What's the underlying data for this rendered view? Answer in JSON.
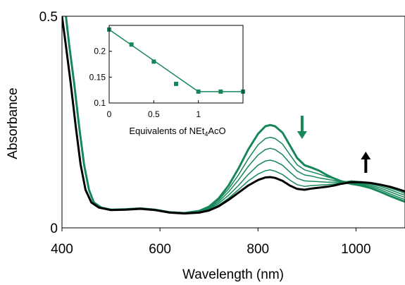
{
  "colors": {
    "green": "#17875a",
    "black": "#000000",
    "axis": "#000000"
  },
  "chart_data": [
    {
      "type": "line",
      "title": "",
      "xlabel": "Wavelength (nm)",
      "ylabel": "Absorbance",
      "xlim": [
        400,
        1100
      ],
      "ylim": [
        0,
        0.5
      ],
      "xticks": [
        400,
        600,
        800,
        1000
      ],
      "xtick_labels": [
        "400",
        "600",
        "800",
        "1000"
      ],
      "yticks": [
        0,
        0.5
      ],
      "ytick_labels": [
        "0",
        "0.5"
      ],
      "grid": false,
      "legend": "none",
      "annotations": [
        {
          "kind": "arrow",
          "direction": "down",
          "x": 890,
          "y_from": 0.265,
          "y_to": 0.21,
          "color": "green"
        },
        {
          "kind": "arrow",
          "direction": "up",
          "x": 1020,
          "y_from": 0.13,
          "y_to": 0.18,
          "color": "black"
        }
      ],
      "series": [
        {
          "color": "green",
          "width": 3.0,
          "points": [
            [
              408,
              0.5
            ],
            [
              415,
              0.43
            ],
            [
              425,
              0.34
            ],
            [
              435,
              0.24
            ],
            [
              445,
              0.15
            ],
            [
              455,
              0.09
            ],
            [
              465,
              0.06
            ],
            [
              480,
              0.048
            ],
            [
              500,
              0.043
            ],
            [
              530,
              0.044
            ],
            [
              560,
              0.046
            ],
            [
              590,
              0.043
            ],
            [
              620,
              0.037
            ],
            [
              650,
              0.035
            ],
            [
              680,
              0.04
            ],
            [
              700,
              0.05
            ],
            [
              720,
              0.07
            ],
            [
              740,
              0.1
            ],
            [
              760,
              0.14
            ],
            [
              780,
              0.185
            ],
            [
              800,
              0.222
            ],
            [
              815,
              0.24
            ],
            [
              825,
              0.243
            ],
            [
              835,
              0.24
            ],
            [
              850,
              0.225
            ],
            [
              865,
              0.195
            ],
            [
              880,
              0.165
            ],
            [
              895,
              0.148
            ],
            [
              910,
              0.142
            ],
            [
              925,
              0.135
            ],
            [
              940,
              0.125
            ],
            [
              955,
              0.117
            ],
            [
              970,
              0.11
            ],
            [
              990,
              0.104
            ],
            [
              1010,
              0.1
            ],
            [
              1030,
              0.094
            ],
            [
              1050,
              0.085
            ],
            [
              1070,
              0.075
            ],
            [
              1090,
              0.066
            ],
            [
              1100,
              0.062
            ]
          ]
        },
        {
          "color": "green",
          "width": 1.5,
          "points": [
            [
              408,
              0.5
            ],
            [
              415,
              0.43
            ],
            [
              425,
              0.34
            ],
            [
              435,
              0.24
            ],
            [
              445,
              0.15
            ],
            [
              455,
              0.09
            ],
            [
              465,
              0.06
            ],
            [
              480,
              0.048
            ],
            [
              500,
              0.043
            ],
            [
              530,
              0.044
            ],
            [
              560,
              0.046
            ],
            [
              590,
              0.043
            ],
            [
              620,
              0.037
            ],
            [
              650,
              0.035
            ],
            [
              680,
              0.039
            ],
            [
              700,
              0.048
            ],
            [
              720,
              0.066
            ],
            [
              740,
              0.092
            ],
            [
              760,
              0.125
            ],
            [
              780,
              0.163
            ],
            [
              800,
              0.196
            ],
            [
              815,
              0.211
            ],
            [
              825,
              0.214
            ],
            [
              835,
              0.211
            ],
            [
              850,
              0.198
            ],
            [
              865,
              0.173
            ],
            [
              880,
              0.149
            ],
            [
              895,
              0.137
            ],
            [
              910,
              0.132
            ],
            [
              925,
              0.127
            ],
            [
              940,
              0.121
            ],
            [
              955,
              0.116
            ],
            [
              970,
              0.111
            ],
            [
              990,
              0.107
            ],
            [
              1010,
              0.103
            ],
            [
              1030,
              0.098
            ],
            [
              1050,
              0.09
            ],
            [
              1070,
              0.08
            ],
            [
              1090,
              0.071
            ],
            [
              1100,
              0.067
            ]
          ]
        },
        {
          "color": "green",
          "width": 1.5,
          "points": [
            [
              408,
              0.5
            ],
            [
              415,
              0.43
            ],
            [
              425,
              0.34
            ],
            [
              435,
              0.24
            ],
            [
              445,
              0.15
            ],
            [
              455,
              0.09
            ],
            [
              465,
              0.06
            ],
            [
              480,
              0.048
            ],
            [
              500,
              0.043
            ],
            [
              530,
              0.044
            ],
            [
              560,
              0.046
            ],
            [
              590,
              0.043
            ],
            [
              620,
              0.037
            ],
            [
              650,
              0.035
            ],
            [
              680,
              0.038
            ],
            [
              700,
              0.046
            ],
            [
              720,
              0.062
            ],
            [
              740,
              0.085
            ],
            [
              760,
              0.113
            ],
            [
              780,
              0.145
            ],
            [
              800,
              0.172
            ],
            [
              815,
              0.185
            ],
            [
              825,
              0.188
            ],
            [
              835,
              0.185
            ],
            [
              850,
              0.173
            ],
            [
              865,
              0.153
            ],
            [
              880,
              0.134
            ],
            [
              895,
              0.125
            ],
            [
              910,
              0.122
            ],
            [
              925,
              0.118
            ],
            [
              940,
              0.115
            ],
            [
              955,
              0.112
            ],
            [
              970,
              0.11
            ],
            [
              990,
              0.108
            ],
            [
              1010,
              0.105
            ],
            [
              1030,
              0.101
            ],
            [
              1050,
              0.094
            ],
            [
              1070,
              0.085
            ],
            [
              1090,
              0.076
            ],
            [
              1100,
              0.072
            ]
          ]
        },
        {
          "color": "green",
          "width": 1.5,
          "points": [
            [
              408,
              0.5
            ],
            [
              415,
              0.43
            ],
            [
              425,
              0.34
            ],
            [
              435,
              0.24
            ],
            [
              445,
              0.15
            ],
            [
              455,
              0.09
            ],
            [
              465,
              0.06
            ],
            [
              480,
              0.048
            ],
            [
              500,
              0.043
            ],
            [
              530,
              0.044
            ],
            [
              560,
              0.046
            ],
            [
              590,
              0.043
            ],
            [
              620,
              0.037
            ],
            [
              650,
              0.035
            ],
            [
              680,
              0.037
            ],
            [
              700,
              0.044
            ],
            [
              720,
              0.058
            ],
            [
              740,
              0.077
            ],
            [
              760,
              0.1
            ],
            [
              780,
              0.126
            ],
            [
              800,
              0.148
            ],
            [
              815,
              0.158
            ],
            [
              825,
              0.16
            ],
            [
              835,
              0.157
            ],
            [
              850,
              0.148
            ],
            [
              865,
              0.132
            ],
            [
              880,
              0.117
            ],
            [
              895,
              0.111
            ],
            [
              910,
              0.11
            ],
            [
              925,
              0.109
            ],
            [
              940,
              0.108
            ],
            [
              955,
              0.108
            ],
            [
              970,
              0.109
            ],
            [
              990,
              0.11
            ],
            [
              1010,
              0.107
            ],
            [
              1030,
              0.104
            ],
            [
              1050,
              0.098
            ],
            [
              1070,
              0.09
            ],
            [
              1090,
              0.081
            ],
            [
              1100,
              0.077
            ]
          ]
        },
        {
          "color": "green",
          "width": 1.5,
          "points": [
            [
              408,
              0.5
            ],
            [
              415,
              0.43
            ],
            [
              425,
              0.34
            ],
            [
              435,
              0.24
            ],
            [
              445,
              0.15
            ],
            [
              455,
              0.09
            ],
            [
              465,
              0.06
            ],
            [
              480,
              0.048
            ],
            [
              500,
              0.043
            ],
            [
              530,
              0.044
            ],
            [
              560,
              0.046
            ],
            [
              590,
              0.043
            ],
            [
              620,
              0.037
            ],
            [
              650,
              0.035
            ],
            [
              680,
              0.036
            ],
            [
              700,
              0.042
            ],
            [
              720,
              0.054
            ],
            [
              740,
              0.07
            ],
            [
              760,
              0.09
            ],
            [
              780,
              0.111
            ],
            [
              800,
              0.127
            ],
            [
              815,
              0.135
            ],
            [
              825,
              0.137
            ],
            [
              835,
              0.134
            ],
            [
              850,
              0.126
            ],
            [
              865,
              0.113
            ],
            [
              880,
              0.102
            ],
            [
              895,
              0.098
            ],
            [
              910,
              0.1
            ],
            [
              925,
              0.101
            ],
            [
              940,
              0.102
            ],
            [
              955,
              0.104
            ],
            [
              970,
              0.107
            ],
            [
              990,
              0.111
            ],
            [
              1010,
              0.109
            ],
            [
              1030,
              0.106
            ],
            [
              1050,
              0.101
            ],
            [
              1070,
              0.094
            ],
            [
              1090,
              0.086
            ],
            [
              1100,
              0.081
            ]
          ]
        },
        {
          "color": "black",
          "width": 3.0,
          "points": [
            [
              400,
              0.5
            ],
            [
              408,
              0.43
            ],
            [
              418,
              0.34
            ],
            [
              428,
              0.24
            ],
            [
              438,
              0.15
            ],
            [
              448,
              0.09
            ],
            [
              460,
              0.06
            ],
            [
              475,
              0.048
            ],
            [
              500,
              0.042
            ],
            [
              530,
              0.043
            ],
            [
              560,
              0.045
            ],
            [
              590,
              0.042
            ],
            [
              620,
              0.036
            ],
            [
              650,
              0.034
            ],
            [
              680,
              0.036
            ],
            [
              700,
              0.041
            ],
            [
              720,
              0.051
            ],
            [
              740,
              0.066
            ],
            [
              760,
              0.083
            ],
            [
              780,
              0.1
            ],
            [
              800,
              0.113
            ],
            [
              815,
              0.119
            ],
            [
              825,
              0.12
            ],
            [
              835,
              0.118
            ],
            [
              850,
              0.111
            ],
            [
              865,
              0.1
            ],
            [
              880,
              0.092
            ],
            [
              895,
              0.09
            ],
            [
              910,
              0.093
            ],
            [
              925,
              0.095
            ],
            [
              940,
              0.097
            ],
            [
              955,
              0.1
            ],
            [
              970,
              0.104
            ],
            [
              990,
              0.108
            ],
            [
              1010,
              0.108
            ],
            [
              1030,
              0.106
            ],
            [
              1050,
              0.102
            ],
            [
              1070,
              0.097
            ],
            [
              1090,
              0.09
            ],
            [
              1100,
              0.086
            ]
          ]
        }
      ]
    },
    {
      "type": "scatter",
      "title": "",
      "xlabel": "Equivalents of NEt",
      "xlabel_sub": "4",
      "xlabel_suffix": "AcO",
      "ylabel": "",
      "xlim": [
        0,
        1.5
      ],
      "ylim": [
        0.1,
        0.25
      ],
      "xticks": [
        0,
        0.5,
        1
      ],
      "xtick_labels": [
        "0",
        "0.5",
        "1"
      ],
      "yticks": [
        0.1,
        0.15,
        0.2
      ],
      "ytick_labels": [
        "0.1",
        "0.15",
        "0.2"
      ],
      "grid": false,
      "legend": "none",
      "series": [
        {
          "color": "green",
          "x": [
            0,
            0.25,
            0.5,
            0.75,
            1.0,
            1.25,
            1.5
          ],
          "y": [
            0.242,
            0.213,
            0.18,
            0.137,
            0.122,
            0.122,
            0.122
          ]
        }
      ],
      "fit_line": {
        "color": "green",
        "x": [
          0,
          1.0,
          1.5
        ],
        "y": [
          0.242,
          0.122,
          0.122
        ]
      }
    }
  ]
}
